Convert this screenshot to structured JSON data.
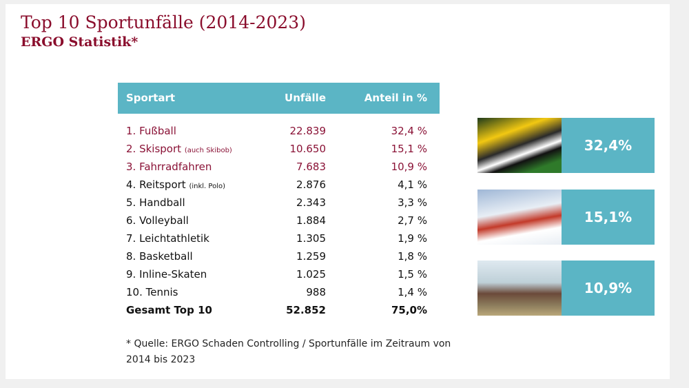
{
  "title": "Top 10 Sportunfälle (2014-2023)",
  "subtitle": "ERGO Statistik*",
  "chart_data": {
    "type": "table",
    "columns": [
      "Sportart",
      "Unfälle",
      "Anteil in %"
    ],
    "rows": [
      {
        "sport": "1. Fußball",
        "note": "",
        "count": "22.839",
        "share": "32,4 %"
      },
      {
        "sport": "2. Skisport",
        "note": "(auch Skibob)",
        "count": "10.650",
        "share": "15,1 %"
      },
      {
        "sport": "3. Fahrradfahren",
        "note": "",
        "count": "7.683",
        "share": "10,9 %"
      },
      {
        "sport": "4. Reitsport",
        "note": "(inkl. Polo)",
        "count": "2.876",
        "share": "4,1 %"
      },
      {
        "sport": "5. Handball",
        "note": "",
        "count": "2.343",
        "share": "3,3 %"
      },
      {
        "sport": "6. Volleyball",
        "note": "",
        "count": "1.884",
        "share": "2,7 %"
      },
      {
        "sport": "7. Leichtathletik",
        "note": "",
        "count": "1.305",
        "share": "1,9 %"
      },
      {
        "sport": "8. Basketball",
        "note": "",
        "count": "1.259",
        "share": "1,8 %"
      },
      {
        "sport": "9. Inline-Skaten",
        "note": "",
        "count": "1.025",
        "share": "1,5 %"
      },
      {
        "sport": "10. Tennis",
        "note": "",
        "count": "988",
        "share": "1,4 %"
      }
    ],
    "total": {
      "label": "Gesamt Top 10",
      "count": "52.852",
      "share": "75,0%"
    },
    "highlights": [
      "32,4%",
      "15,1%",
      "10,9%"
    ]
  },
  "footnote": "* Quelle: ERGO Schaden Controlling / Sportunfälle im Zeitraum von 2014 bis 2023",
  "colors": {
    "accent": "#5bb5c5",
    "brand": "#8a0d2c"
  }
}
